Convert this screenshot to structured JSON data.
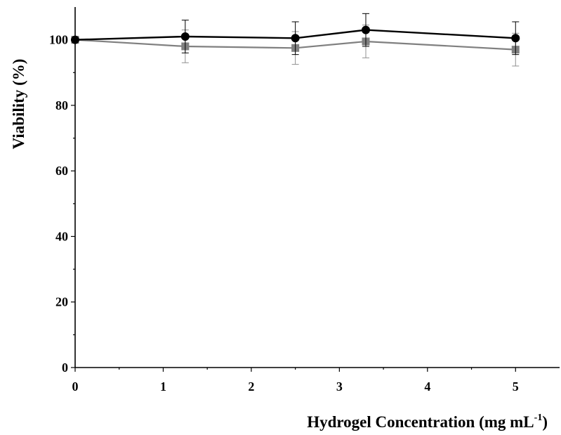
{
  "chart_data": {
    "type": "line",
    "xlabel": "Hydrogel Concentration (mg mL",
    "xlabel_sup": "-1",
    "xlabel_close": ")",
    "ylabel": "Viability (%)",
    "xlim": [
      0,
      5.5
    ],
    "ylim": [
      0,
      110
    ],
    "x_ticks": [
      0,
      1,
      2,
      3,
      4,
      5
    ],
    "y_ticks": [
      0,
      20,
      40,
      60,
      80,
      100
    ],
    "grid": false,
    "legend": "none",
    "series": [
      {
        "marker": "circle",
        "color": "#000000",
        "x": [
          0,
          1.25,
          2.5,
          3.3,
          5
        ],
        "y": [
          100,
          101,
          100.5,
          103,
          100.5
        ],
        "err": [
          0,
          5,
          5,
          5,
          5
        ]
      },
      {
        "marker": "square",
        "color": "#808080",
        "x": [
          0,
          1.25,
          2.5,
          3.3,
          5
        ],
        "y": [
          100,
          98,
          97.5,
          99.5,
          97
        ],
        "err": [
          0,
          5,
          5,
          5,
          5
        ]
      }
    ]
  }
}
